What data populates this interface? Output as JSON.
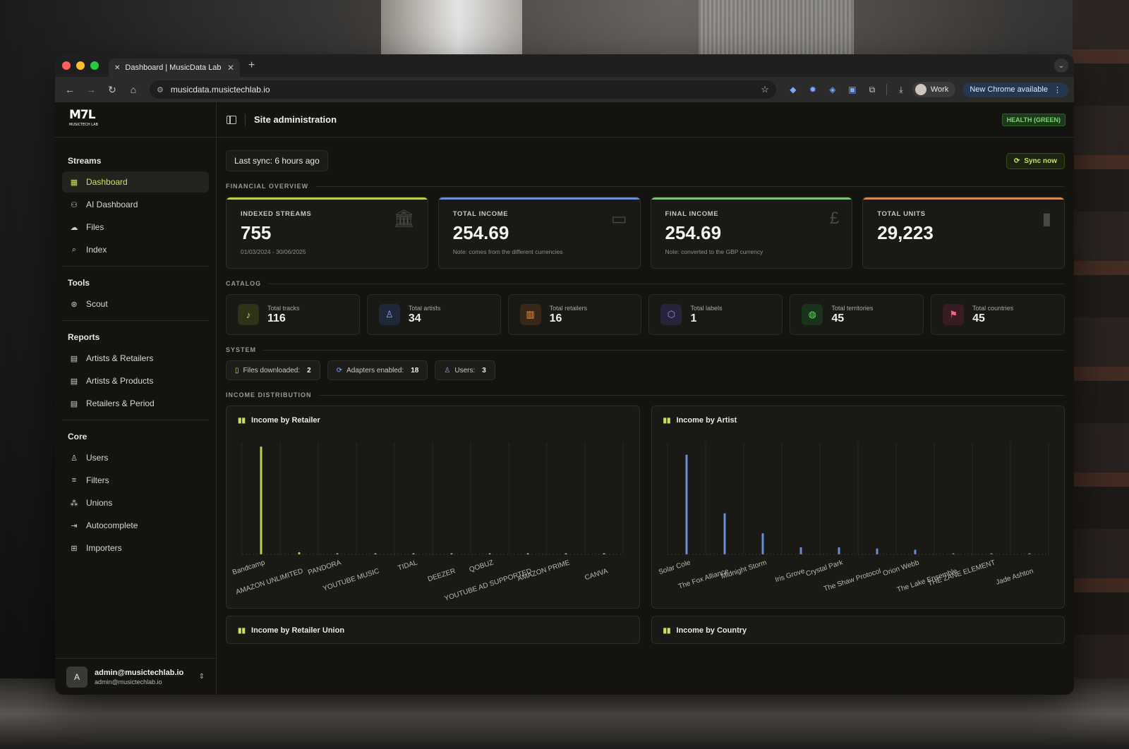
{
  "browser": {
    "tab_title": "Dashboard | MusicData Lab",
    "url": "musicdata.musictechlab.io",
    "profile_label": "Work",
    "update_label": "New Chrome available",
    "light_colors": [
      "#ff5f57",
      "#febc2e",
      "#28c840"
    ]
  },
  "brand": {
    "logo": "M7L",
    "sub": "MUSICTECH LAB"
  },
  "sidebar": {
    "sections": [
      {
        "heading": "Streams",
        "items": [
          {
            "label": "Dashboard",
            "icon": "grid-icon",
            "active": true
          },
          {
            "label": "AI Dashboard",
            "icon": "robot-icon"
          },
          {
            "label": "Files",
            "icon": "cloud-upload-icon"
          },
          {
            "label": "Index",
            "icon": "search-icon"
          }
        ]
      },
      {
        "heading": "Tools",
        "items": [
          {
            "label": "Scout",
            "icon": "scout-search-icon"
          }
        ]
      },
      {
        "heading": "Reports",
        "items": [
          {
            "label": "Artists & Retailers",
            "icon": "table-icon"
          },
          {
            "label": "Artists & Products",
            "icon": "table-icon"
          },
          {
            "label": "Retailers & Period",
            "icon": "table-icon"
          }
        ]
      },
      {
        "heading": "Core",
        "items": [
          {
            "label": "Users",
            "icon": "user-icon"
          },
          {
            "label": "Filters",
            "icon": "filter-icon"
          },
          {
            "label": "Unions",
            "icon": "unions-icon"
          },
          {
            "label": "Autocomplete",
            "icon": "autocomplete-icon"
          },
          {
            "label": "Importers",
            "icon": "importer-icon"
          }
        ]
      }
    ],
    "user": {
      "initial": "A",
      "name": "admin@musictechlab.io",
      "email": "admin@musictechlab.io"
    }
  },
  "header": {
    "title": "Site administration",
    "health": "HEALTH (GREEN)"
  },
  "sync": {
    "last_sync": "Last sync: 6 hours ago",
    "button": "Sync now"
  },
  "sections": {
    "financial": "FINANCIAL OVERVIEW",
    "catalog": "CATALOG",
    "system": "SYSTEM",
    "distribution": "INCOME DISTRIBUTION"
  },
  "financial_cards": [
    {
      "label": "INDEXED STREAMS",
      "value": "755",
      "sub": "01/03/2024 - 30/06/2025",
      "accent": "#b5d44a",
      "icon": "bank-icon"
    },
    {
      "label": "TOTAL INCOME",
      "value": "254.69",
      "sub": "Note: comes from the different currencies",
      "accent": "#6b8fd6",
      "icon": "money-icon"
    },
    {
      "label": "FINAL INCOME",
      "value": "254.69",
      "sub": "Note: converted to the GBP currency",
      "accent": "#79c27a",
      "icon": "pound-icon"
    },
    {
      "label": "TOTAL UNITS",
      "value": "29,223",
      "sub": "",
      "accent": "#d08a52",
      "icon": "bar-chart-icon"
    }
  ],
  "catalog_cards": [
    {
      "label": "Total tracks",
      "value": "116",
      "icon": "music-note-icon",
      "color": "#c8e35a",
      "bg": "#2c3318"
    },
    {
      "label": "Total artists",
      "value": "34",
      "icon": "user-icon",
      "color": "#7fa6ff",
      "bg": "#1f2838"
    },
    {
      "label": "Total retailers",
      "value": "16",
      "icon": "store-icon",
      "color": "#e89a4a",
      "bg": "#38281a"
    },
    {
      "label": "Total labels",
      "value": "1",
      "icon": "tag-icon",
      "color": "#9a8ee8",
      "bg": "#26233a"
    },
    {
      "label": "Total territories",
      "value": "45",
      "icon": "globe-icon",
      "color": "#6ed46a",
      "bg": "#1b331c"
    },
    {
      "label": "Total countries",
      "value": "45",
      "icon": "flag-icon",
      "color": "#e86a86",
      "bg": "#381c24"
    }
  ],
  "system_pills": [
    {
      "label": "Files downloaded:",
      "value": "2",
      "icon": "file-icon",
      "color": "#c8e35a"
    },
    {
      "label": "Adapters enabled:",
      "value": "18",
      "icon": "adapter-icon",
      "color": "#7fa6ff"
    },
    {
      "label": "Users:",
      "value": "3",
      "icon": "users-icon",
      "color": "#a89ae8"
    }
  ],
  "chart_data": [
    {
      "type": "bar",
      "title": "Income by Retailer",
      "categories": [
        "Bandcamp",
        "AMAZON UNLIMITED",
        "PANDORA",
        "YOUTUBE MUSIC",
        "TIDAL",
        "DEEZER",
        "QOBUZ",
        "YOUTUBE AD SUPPORTED",
        "AMAZON PRIME",
        "CANVA"
      ],
      "values": [
        150,
        3,
        0.8,
        0.6,
        0.4,
        0.3,
        0.25,
        0.2,
        0.15,
        0.1
      ],
      "ylim": [
        0,
        155
      ],
      "color": "#b5d44a",
      "grid": true
    },
    {
      "type": "bar",
      "title": "Income by Artist",
      "categories": [
        "Solar Cole",
        "The Fox Alliance",
        "Midnight Storm",
        "Iris Grove",
        "Crystal Park",
        "The Shaw Protocol",
        "Orion Webb",
        "The Lake Ensemble",
        "THE ZANE ELEMENT",
        "Jade Ashton"
      ],
      "values": [
        85,
        35,
        18,
        6,
        6,
        5,
        4,
        0.5,
        0.4,
        0.3
      ],
      "ylim": [
        0,
        95
      ],
      "color": "#6b8fd6",
      "grid": true
    }
  ],
  "lower_charts": [
    {
      "title": "Income by Retailer Union"
    },
    {
      "title": "Income by Country"
    }
  ]
}
